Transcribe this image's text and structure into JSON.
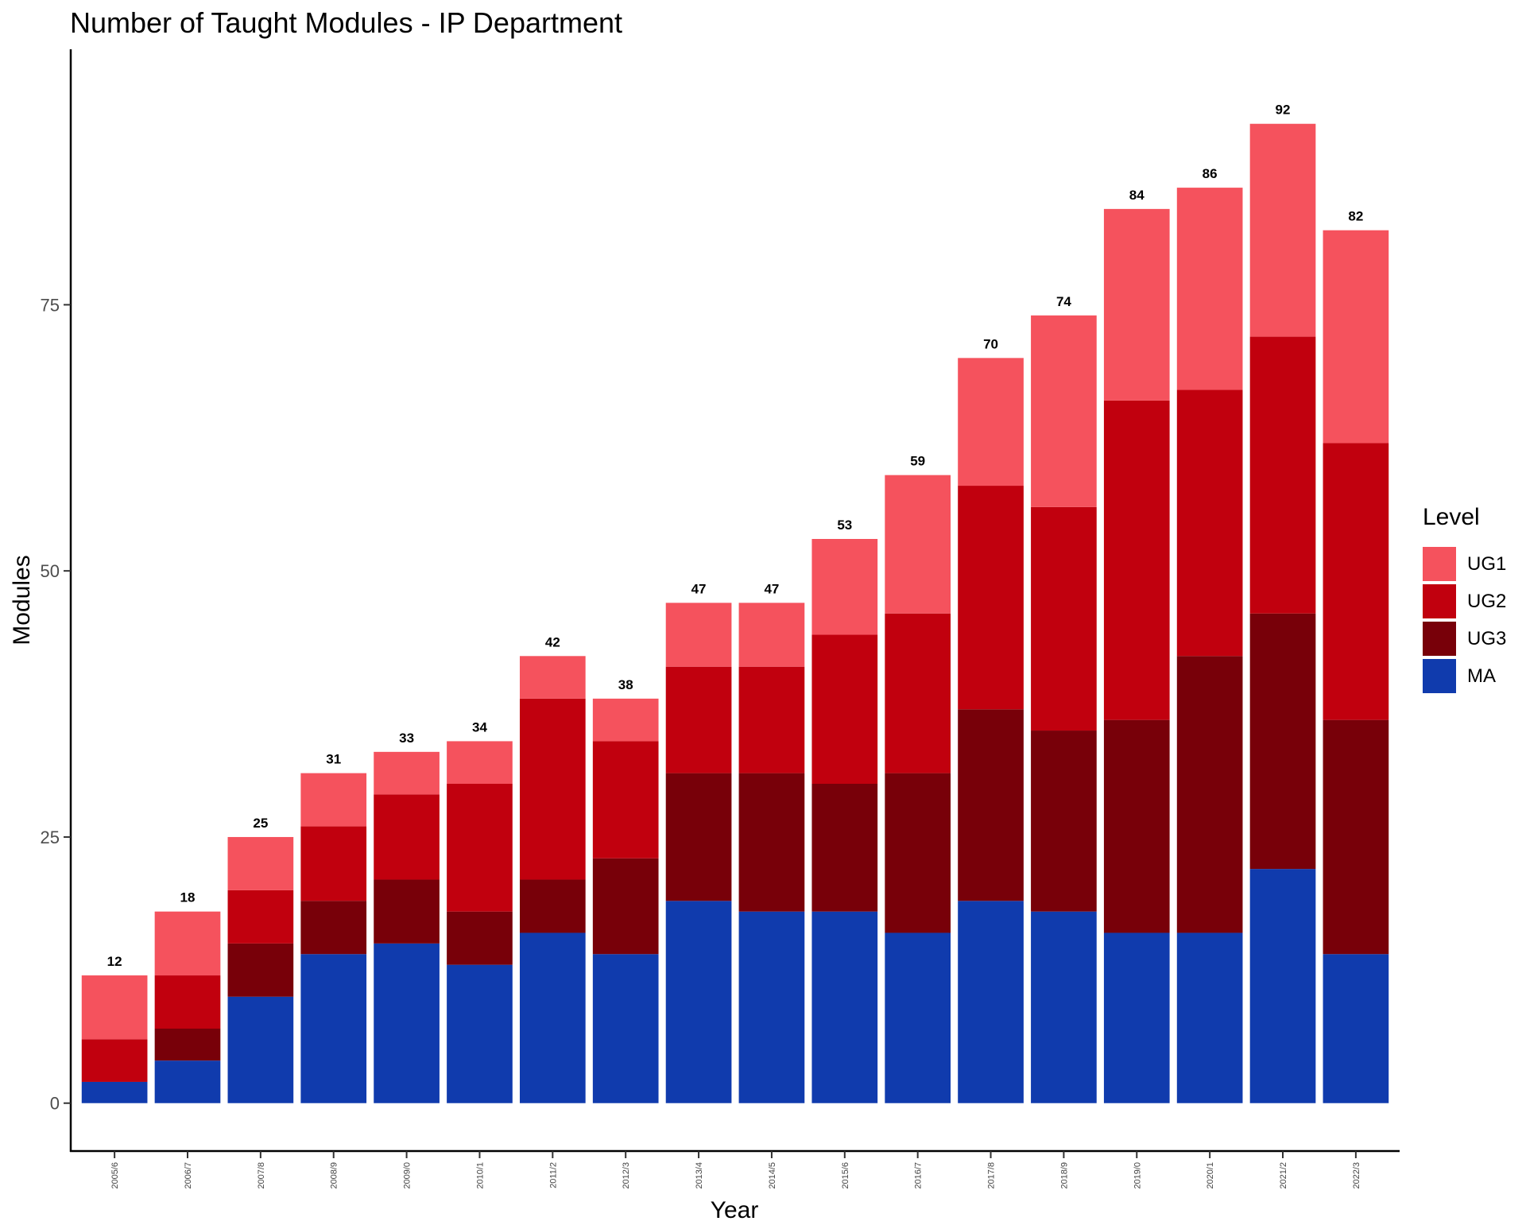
{
  "chart_data": {
    "type": "bar",
    "stacked": true,
    "title": "Number of Taught Modules - IP Department",
    "xlabel": "Year",
    "ylabel": "Modules",
    "ylim": [
      -4.5,
      99
    ],
    "yticks": [
      0,
      25,
      50,
      75
    ],
    "legend": {
      "title": "Level",
      "placement": "right"
    },
    "categories": [
      "2005/6",
      "2006/7",
      "2007/8",
      "2008/9",
      "2009/0",
      "2010/1",
      "2011/2",
      "2012/3",
      "2013/4",
      "2014/5",
      "2015/6",
      "2016/7",
      "2017/8",
      "2018/9",
      "2019/0",
      "2020/1",
      "2021/2",
      "2022/3"
    ],
    "series": [
      {
        "name": "MA",
        "color": "#103BAD",
        "values": [
          2,
          4,
          10,
          14,
          15,
          13,
          16,
          14,
          19,
          18,
          18,
          16,
          19,
          18,
          16,
          16,
          22,
          14
        ]
      },
      {
        "name": "UG3",
        "color": "#780009",
        "values": [
          0,
          3,
          5,
          5,
          6,
          5,
          5,
          9,
          12,
          13,
          12,
          15,
          18,
          17,
          20,
          26,
          24,
          22
        ]
      },
      {
        "name": "UG2",
        "color": "#C1000E",
        "values": [
          4,
          5,
          5,
          7,
          8,
          12,
          17,
          11,
          10,
          10,
          14,
          15,
          21,
          21,
          30,
          25,
          26,
          26
        ]
      },
      {
        "name": "UG1",
        "color": "#F5525D",
        "values": [
          6,
          6,
          5,
          5,
          4,
          4,
          4,
          4,
          6,
          6,
          9,
          13,
          12,
          18,
          18,
          19,
          20,
          20
        ]
      }
    ],
    "totals": [
      12,
      18,
      25,
      31,
      33,
      34,
      42,
      38,
      47,
      47,
      53,
      59,
      70,
      74,
      84,
      86,
      92,
      82
    ],
    "grid": false
  }
}
